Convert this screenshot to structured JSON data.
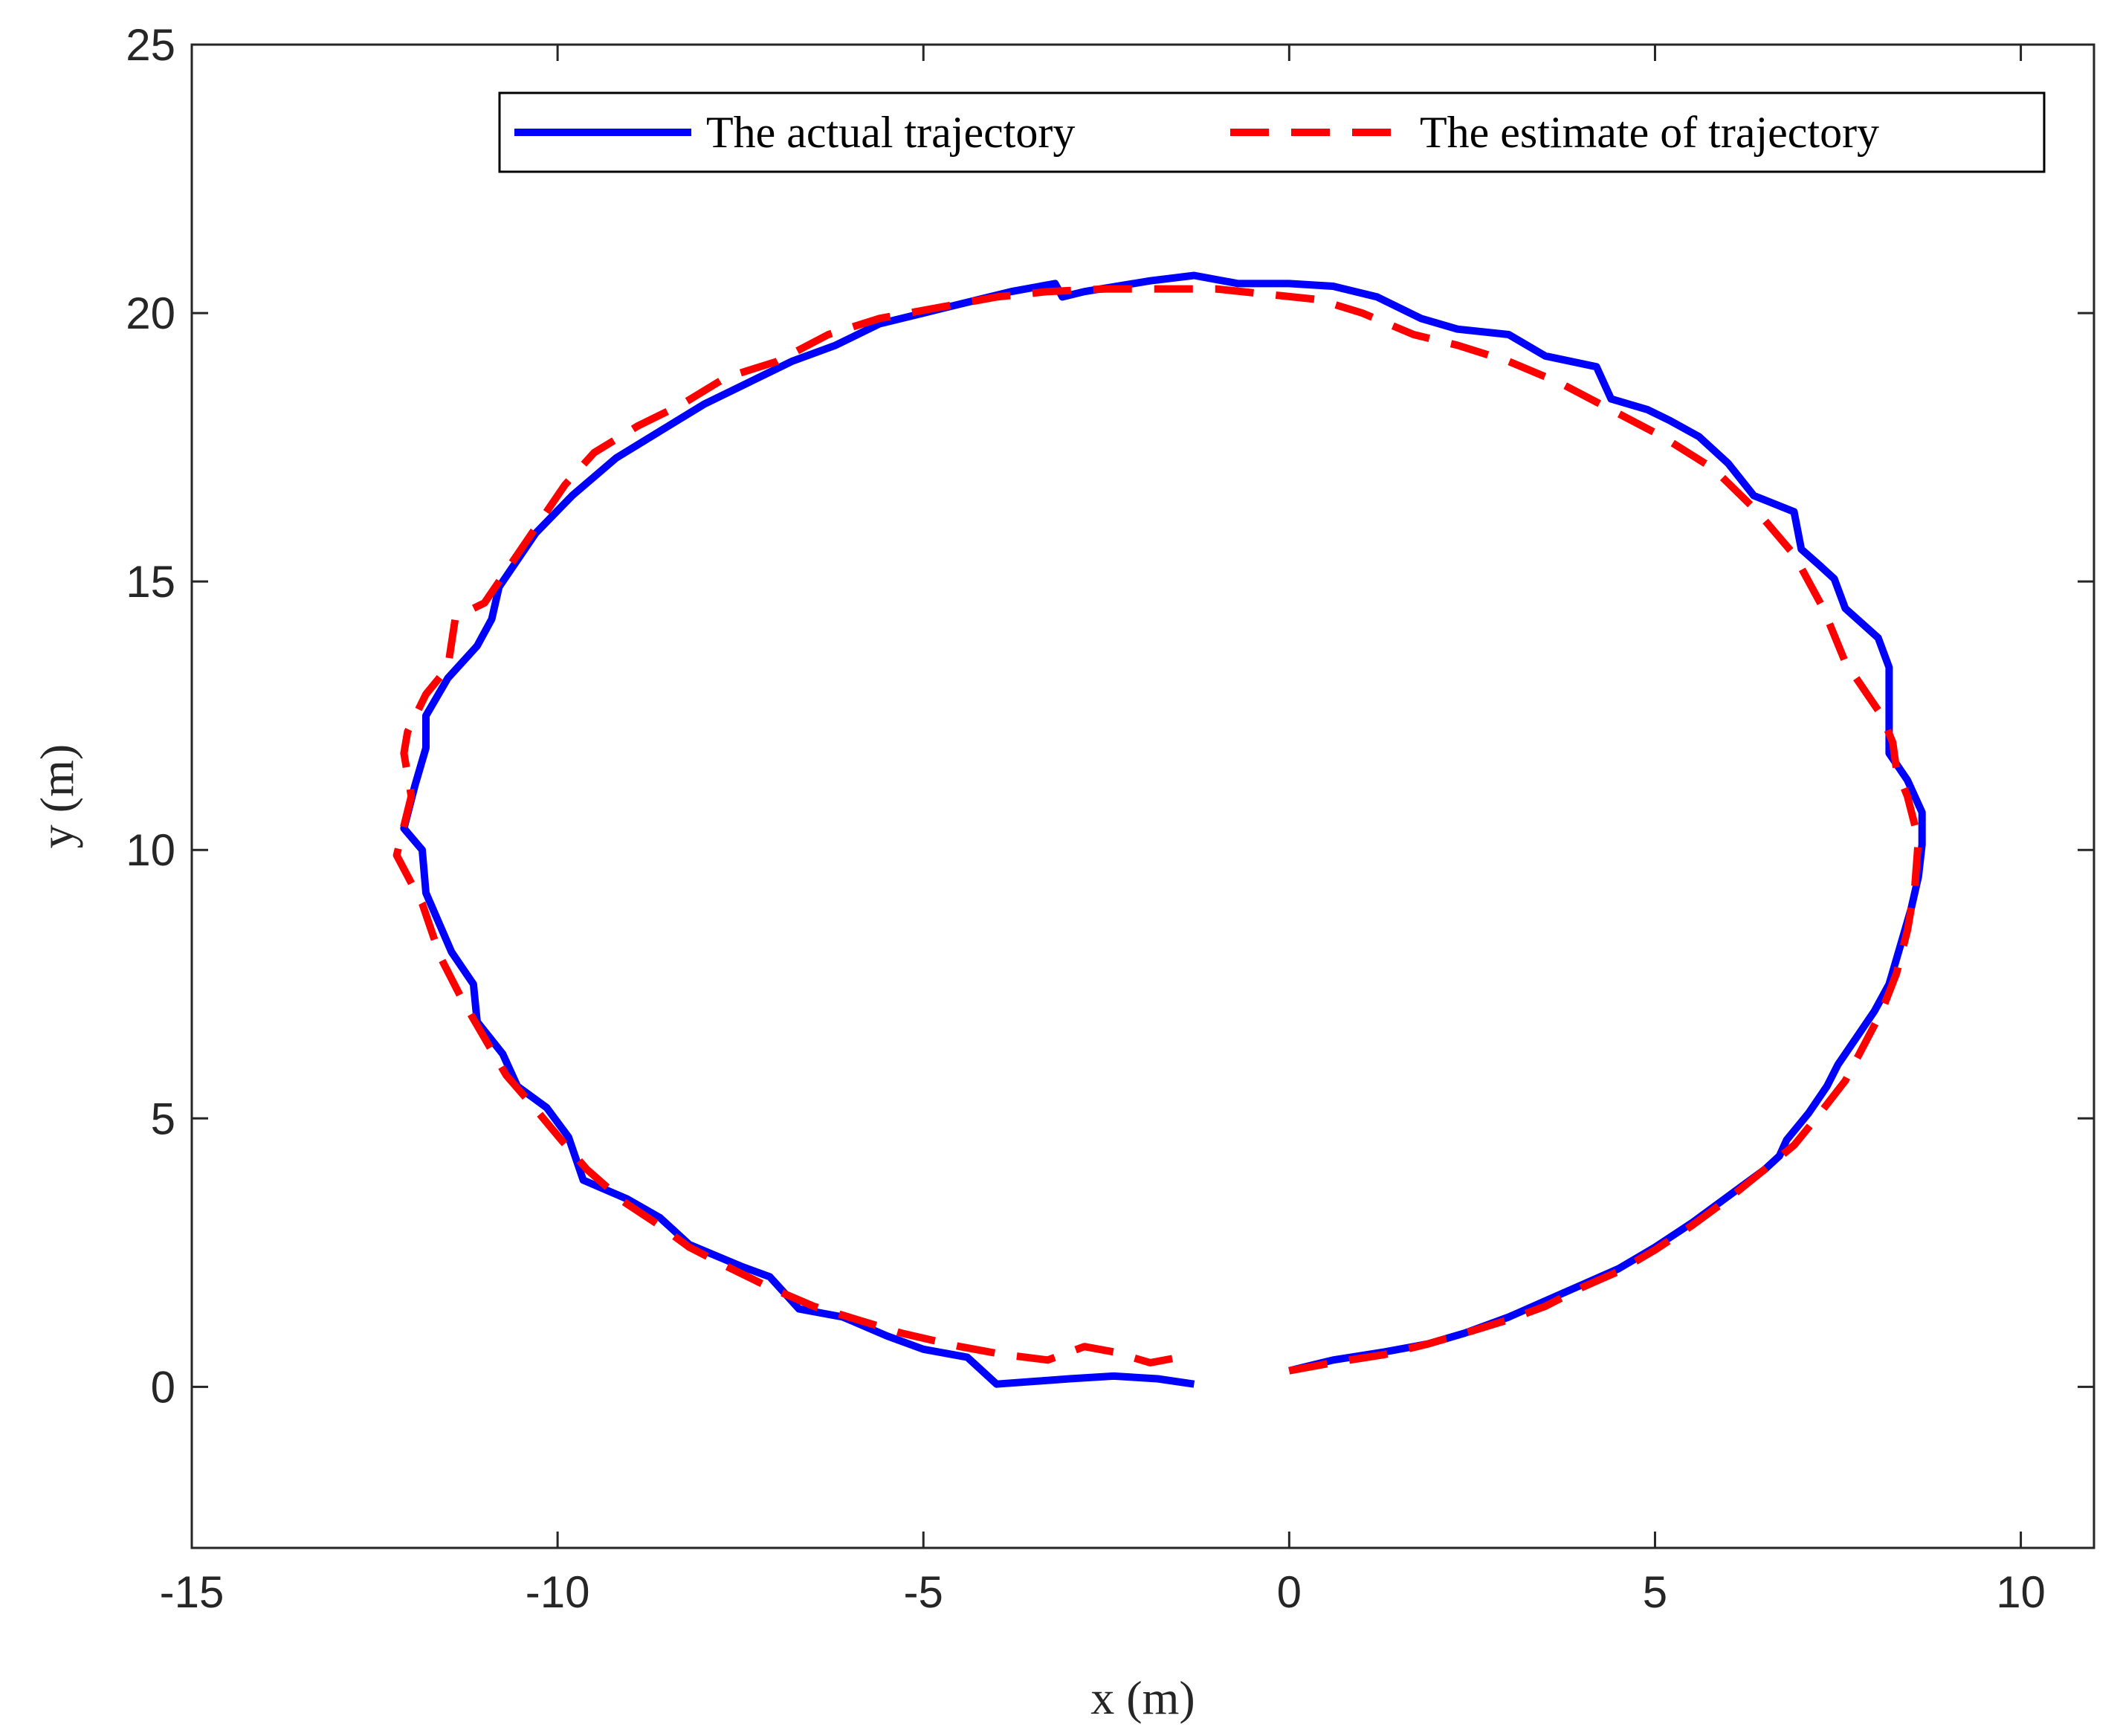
{
  "chart_data": {
    "type": "line",
    "xlabel": "x (m)",
    "ylabel": "y (m)",
    "xlim": [
      -15,
      11
    ],
    "ylim": [
      -3,
      25
    ],
    "xticks": [
      "-15",
      "-10",
      "-5",
      "0",
      "5",
      "10"
    ],
    "yticks": [
      "0",
      "5",
      "10",
      "15",
      "20",
      "25"
    ],
    "xtick_values": [
      -15,
      -10,
      -5,
      0,
      5,
      10
    ],
    "ytick_values": [
      0,
      5,
      10,
      15,
      20,
      25
    ],
    "grid": false,
    "legend_position": "top-right",
    "series": [
      {
        "name": "The actual trajectory",
        "color": "#0000ff",
        "style": "solid",
        "points": [
          [
            0.0,
            0.3
          ],
          [
            0.6,
            0.5
          ],
          [
            1.3,
            0.65
          ],
          [
            1.9,
            0.8
          ],
          [
            2.4,
            1.0
          ],
          [
            3.0,
            1.3
          ],
          [
            3.5,
            1.6
          ],
          [
            4.0,
            1.9
          ],
          [
            4.5,
            2.2
          ],
          [
            5.0,
            2.6
          ],
          [
            5.5,
            3.05
          ],
          [
            6.0,
            3.55
          ],
          [
            6.5,
            4.05
          ],
          [
            6.7,
            4.3
          ],
          [
            6.8,
            4.6
          ],
          [
            7.1,
            5.1
          ],
          [
            7.35,
            5.6
          ],
          [
            7.5,
            6.0
          ],
          [
            7.6,
            6.2
          ],
          [
            8.0,
            7.0
          ],
          [
            8.2,
            7.5
          ],
          [
            8.35,
            8.2
          ],
          [
            8.5,
            8.9
          ],
          [
            8.6,
            9.5
          ],
          [
            8.65,
            10.1
          ],
          [
            8.65,
            10.7
          ],
          [
            8.45,
            11.3
          ],
          [
            8.2,
            11.8
          ],
          [
            8.2,
            13.4
          ],
          [
            8.05,
            13.95
          ],
          [
            7.6,
            14.5
          ],
          [
            7.45,
            15.05
          ],
          [
            7.25,
            15.3
          ],
          [
            7.0,
            15.6
          ],
          [
            6.9,
            16.3
          ],
          [
            6.35,
            16.6
          ],
          [
            6.0,
            17.2
          ],
          [
            5.6,
            17.7
          ],
          [
            5.2,
            18.0
          ],
          [
            4.9,
            18.2
          ],
          [
            4.4,
            18.4
          ],
          [
            4.2,
            19.0
          ],
          [
            3.5,
            19.2
          ],
          [
            3.0,
            19.6
          ],
          [
            2.3,
            19.7
          ],
          [
            1.8,
            19.9
          ],
          [
            1.2,
            20.3
          ],
          [
            0.6,
            20.5
          ],
          [
            0.0,
            20.55
          ],
          [
            -0.7,
            20.55
          ],
          [
            -1.3,
            20.7
          ],
          [
            -1.9,
            20.6
          ],
          [
            -2.8,
            20.4
          ],
          [
            -3.1,
            20.3
          ],
          [
            -3.2,
            20.55
          ],
          [
            -3.8,
            20.4
          ],
          [
            -4.4,
            20.2
          ],
          [
            -5.0,
            20.0
          ],
          [
            -5.6,
            19.8
          ],
          [
            -6.2,
            19.4
          ],
          [
            -6.8,
            19.1
          ],
          [
            -7.4,
            18.7
          ],
          [
            -8.0,
            18.3
          ],
          [
            -8.6,
            17.8
          ],
          [
            -9.2,
            17.3
          ],
          [
            -9.8,
            16.6
          ],
          [
            -10.3,
            15.9
          ],
          [
            -10.8,
            14.9
          ],
          [
            -10.9,
            14.3
          ],
          [
            -11.1,
            13.8
          ],
          [
            -11.5,
            13.2
          ],
          [
            -11.8,
            12.5
          ],
          [
            -11.8,
            11.9
          ],
          [
            -11.95,
            11.2
          ],
          [
            -12.1,
            10.4
          ],
          [
            -11.85,
            10.0
          ],
          [
            -11.8,
            9.2
          ],
          [
            -11.45,
            8.1
          ],
          [
            -11.15,
            7.5
          ],
          [
            -11.1,
            6.8
          ],
          [
            -10.75,
            6.2
          ],
          [
            -10.55,
            5.6
          ],
          [
            -10.15,
            5.2
          ],
          [
            -9.85,
            4.65
          ],
          [
            -9.65,
            3.85
          ],
          [
            -9.05,
            3.5
          ],
          [
            -8.6,
            3.15
          ],
          [
            -8.2,
            2.65
          ],
          [
            -7.5,
            2.25
          ],
          [
            -7.1,
            2.05
          ],
          [
            -6.7,
            1.45
          ],
          [
            -6.1,
            1.3
          ],
          [
            -5.5,
            0.95
          ],
          [
            -5.0,
            0.7
          ],
          [
            -4.4,
            0.55
          ],
          [
            -4.0,
            0.05
          ],
          [
            -3.0,
            0.15
          ],
          [
            -2.4,
            0.2
          ],
          [
            -1.8,
            0.15
          ],
          [
            -1.3,
            0.05
          ]
        ]
      },
      {
        "name": "The estimate of trajectory",
        "color": "#ff0000",
        "style": "dashed",
        "points": [
          [
            0.0,
            0.3
          ],
          [
            0.6,
            0.45
          ],
          [
            1.3,
            0.6
          ],
          [
            1.9,
            0.8
          ],
          [
            2.4,
            1.0
          ],
          [
            3.0,
            1.25
          ],
          [
            3.5,
            1.5
          ],
          [
            4.0,
            1.85
          ],
          [
            4.5,
            2.15
          ],
          [
            5.0,
            2.55
          ],
          [
            5.5,
            3.0
          ],
          [
            6.0,
            3.5
          ],
          [
            6.5,
            4.05
          ],
          [
            6.9,
            4.5
          ],
          [
            7.2,
            5.0
          ],
          [
            7.6,
            5.7
          ],
          [
            8.1,
            7.0
          ],
          [
            8.3,
            7.7
          ],
          [
            8.45,
            8.5
          ],
          [
            8.55,
            9.3
          ],
          [
            8.6,
            10.2
          ],
          [
            8.45,
            11.0
          ],
          [
            8.3,
            11.5
          ],
          [
            8.25,
            12.0
          ],
          [
            8.1,
            12.5
          ],
          [
            7.6,
            13.5
          ],
          [
            7.3,
            14.5
          ],
          [
            6.9,
            15.5
          ],
          [
            6.4,
            16.3
          ],
          [
            5.8,
            17.1
          ],
          [
            5.1,
            17.7
          ],
          [
            4.4,
            18.2
          ],
          [
            3.7,
            18.7
          ],
          [
            3.0,
            19.1
          ],
          [
            2.3,
            19.4
          ],
          [
            1.7,
            19.6
          ],
          [
            1.0,
            20.0
          ],
          [
            0.4,
            20.25
          ],
          [
            -0.3,
            20.35
          ],
          [
            -1.0,
            20.45
          ],
          [
            -1.7,
            20.45
          ],
          [
            -2.5,
            20.45
          ],
          [
            -3.3,
            20.4
          ],
          [
            -4.0,
            20.3
          ],
          [
            -4.8,
            20.1
          ],
          [
            -5.6,
            19.9
          ],
          [
            -6.3,
            19.6
          ],
          [
            -7.0,
            19.1
          ],
          [
            -7.7,
            18.8
          ],
          [
            -8.3,
            18.3
          ],
          [
            -8.9,
            17.9
          ],
          [
            -9.5,
            17.4
          ],
          [
            -9.9,
            16.8
          ],
          [
            -10.3,
            16.0
          ],
          [
            -10.7,
            15.2
          ],
          [
            -11.0,
            14.6
          ],
          [
            -11.3,
            14.4
          ],
          [
            -11.4,
            14.3
          ],
          [
            -11.5,
            13.4
          ],
          [
            -11.8,
            12.9
          ],
          [
            -12.05,
            12.2
          ],
          [
            -12.1,
            11.8
          ],
          [
            -12.0,
            11.0
          ],
          [
            -12.2,
            9.9
          ],
          [
            -11.85,
            9.0
          ],
          [
            -11.6,
            8.0
          ],
          [
            -11.3,
            7.2
          ],
          [
            -11.0,
            6.5
          ],
          [
            -10.7,
            5.8
          ],
          [
            -10.35,
            5.25
          ],
          [
            -9.95,
            4.6
          ],
          [
            -9.6,
            4.05
          ],
          [
            -9.1,
            3.45
          ],
          [
            -8.6,
            3.0
          ],
          [
            -8.2,
            2.6
          ],
          [
            -7.7,
            2.25
          ],
          [
            -7.1,
            1.85
          ],
          [
            -6.5,
            1.5
          ],
          [
            -5.9,
            1.25
          ],
          [
            -5.3,
            1.0
          ],
          [
            -4.5,
            0.75
          ],
          [
            -3.9,
            0.6
          ],
          [
            -3.3,
            0.5
          ],
          [
            -2.8,
            0.75
          ],
          [
            -2.4,
            0.65
          ],
          [
            -1.9,
            0.45
          ],
          [
            -1.5,
            0.55
          ]
        ]
      }
    ]
  }
}
